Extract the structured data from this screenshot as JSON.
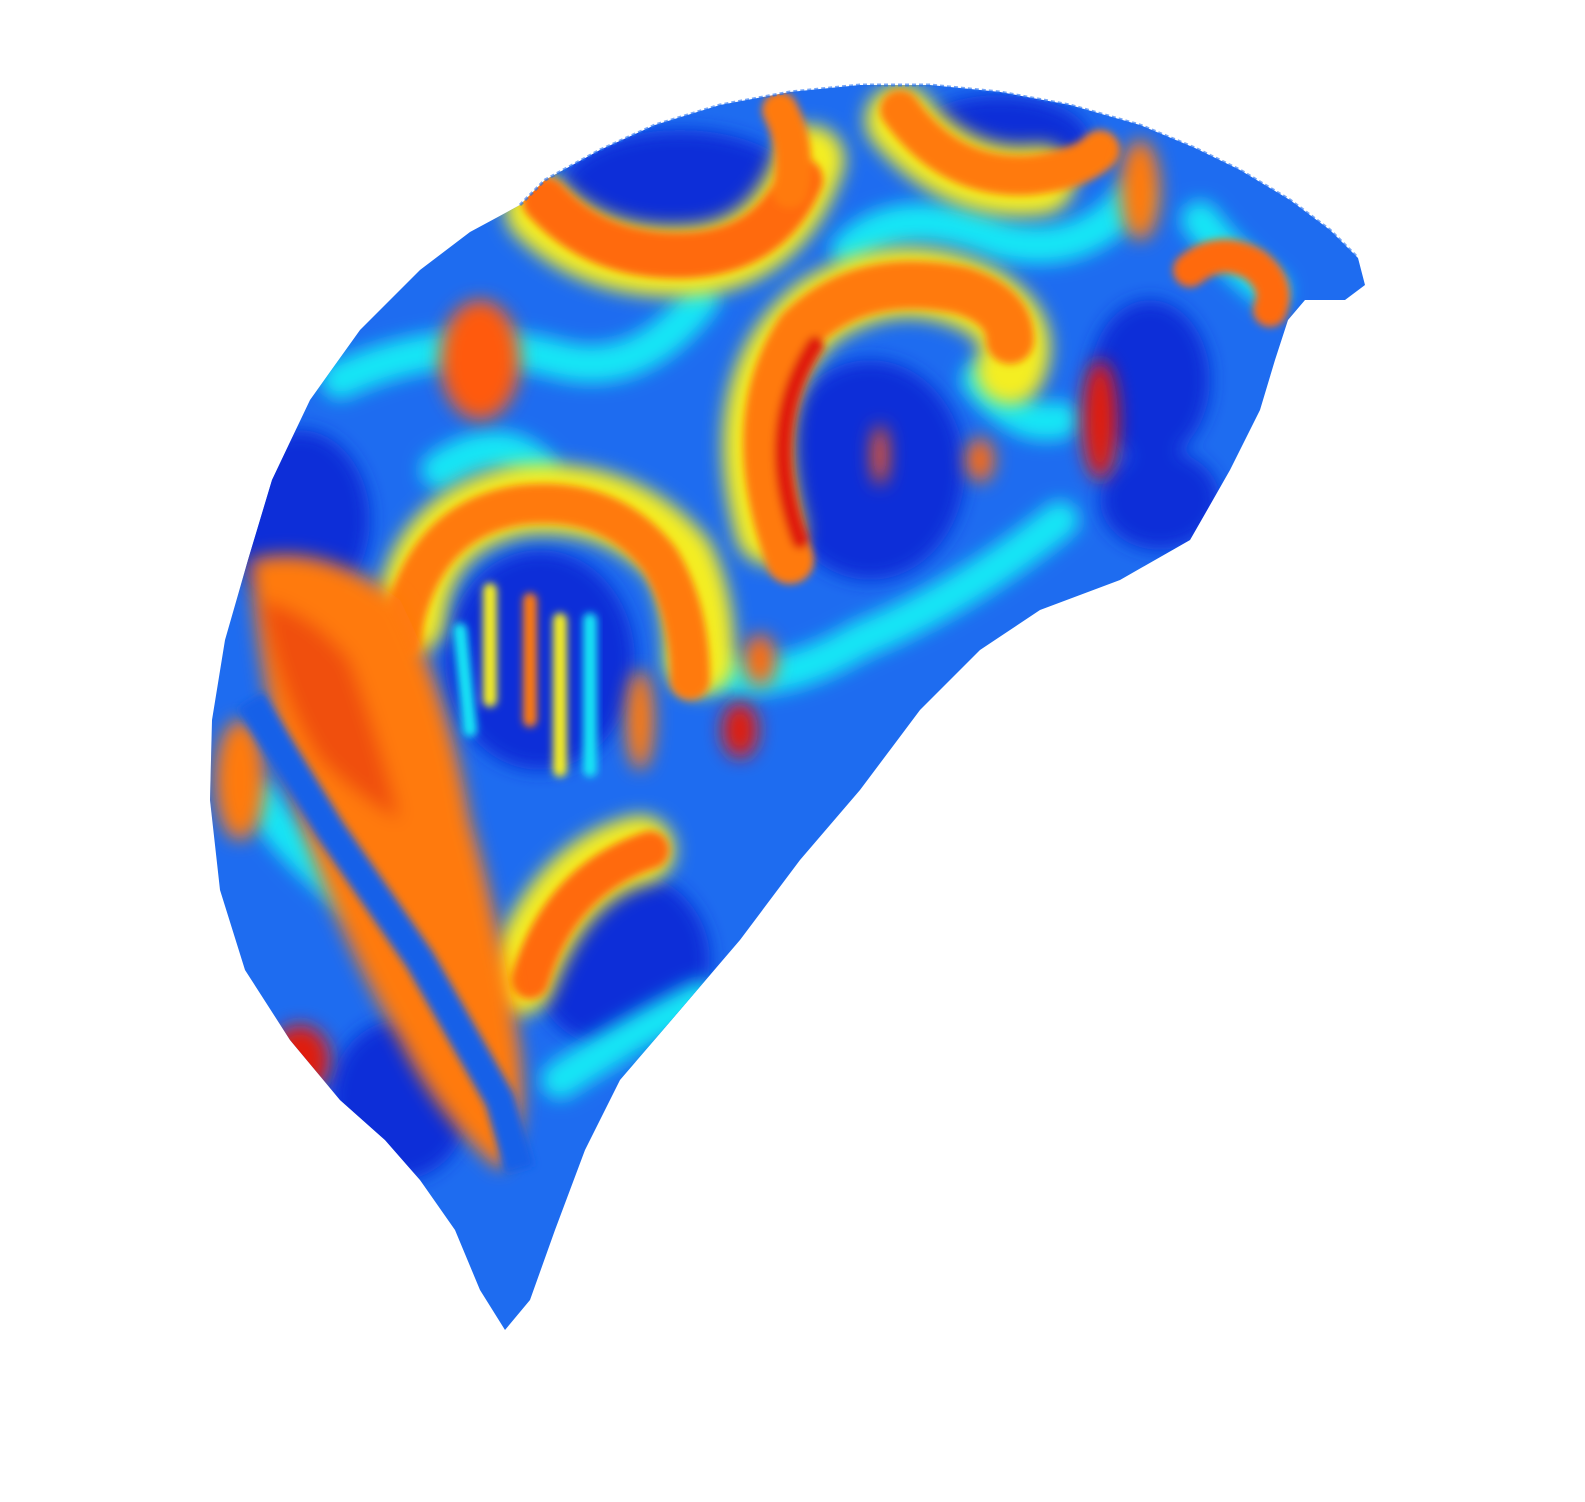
{
  "colors": {
    "background": "#ffffff",
    "deep_blue": "#0a2fd8",
    "blue": "#1e6cf0",
    "cyan": "#18e6f5",
    "yellow": "#f4ee22",
    "orange": "#ff7a10",
    "red": "#e01a0c",
    "deep_red": "#b80000"
  }
}
